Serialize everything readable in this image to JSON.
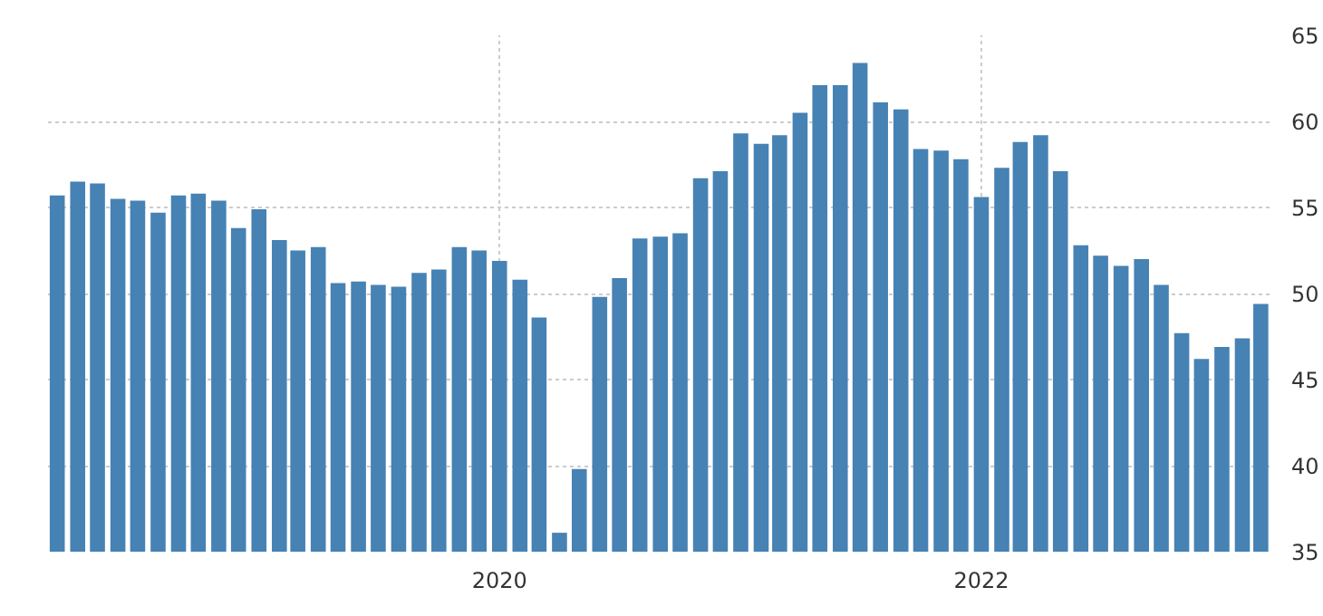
{
  "chart_data": {
    "type": "bar",
    "color": "#4682b4",
    "x": [
      "2018-03",
      "2018-04",
      "2018-05",
      "2018-06",
      "2018-07",
      "2018-08",
      "2018-09",
      "2018-10",
      "2018-11",
      "2018-12",
      "2019-01",
      "2019-02",
      "2019-03",
      "2019-04",
      "2019-05",
      "2019-06",
      "2019-07",
      "2019-08",
      "2019-09",
      "2019-10",
      "2019-11",
      "2019-12",
      "2020-01",
      "2020-02",
      "2020-03",
      "2020-04",
      "2020-05",
      "2020-06",
      "2020-07",
      "2020-08",
      "2020-09",
      "2020-10",
      "2020-11",
      "2020-12",
      "2021-01",
      "2021-02",
      "2021-03",
      "2021-04",
      "2021-05",
      "2021-06",
      "2021-07",
      "2021-08",
      "2021-09",
      "2021-10",
      "2021-11",
      "2021-12",
      "2022-01",
      "2022-02",
      "2022-03",
      "2022-04",
      "2022-05",
      "2022-06",
      "2022-07",
      "2022-08",
      "2022-09",
      "2022-10",
      "2022-11",
      "2022-12",
      "2023-01",
      "2023-02",
      "2023-03"
    ],
    "values": [
      55.7,
      56.5,
      56.4,
      55.5,
      55.4,
      54.7,
      55.7,
      55.8,
      55.4,
      53.8,
      54.9,
      53.1,
      52.5,
      52.7,
      50.6,
      50.7,
      50.5,
      50.4,
      51.2,
      51.4,
      52.7,
      52.5,
      51.9,
      50.8,
      48.6,
      36.1,
      39.8,
      49.8,
      50.9,
      53.2,
      53.3,
      53.5,
      56.7,
      57.1,
      59.3,
      58.7,
      59.2,
      60.5,
      62.1,
      62.1,
      63.4,
      61.1,
      60.7,
      58.4,
      58.3,
      57.8,
      55.6,
      57.3,
      58.8,
      59.2,
      57.1,
      52.8,
      52.2,
      51.6,
      52.0,
      50.5,
      47.7,
      46.2,
      46.9,
      47.4,
      49.4
    ],
    "xlim": [
      "2018-02-15",
      "2023-03-17"
    ],
    "xticks": [
      {
        "value": "2020-01",
        "label": "2020"
      },
      {
        "value": "2022-01",
        "label": "2022"
      }
    ],
    "ylim": [
      35,
      65
    ],
    "yticks": [
      35,
      40,
      45,
      50,
      55,
      60,
      65
    ],
    "grid": true
  }
}
